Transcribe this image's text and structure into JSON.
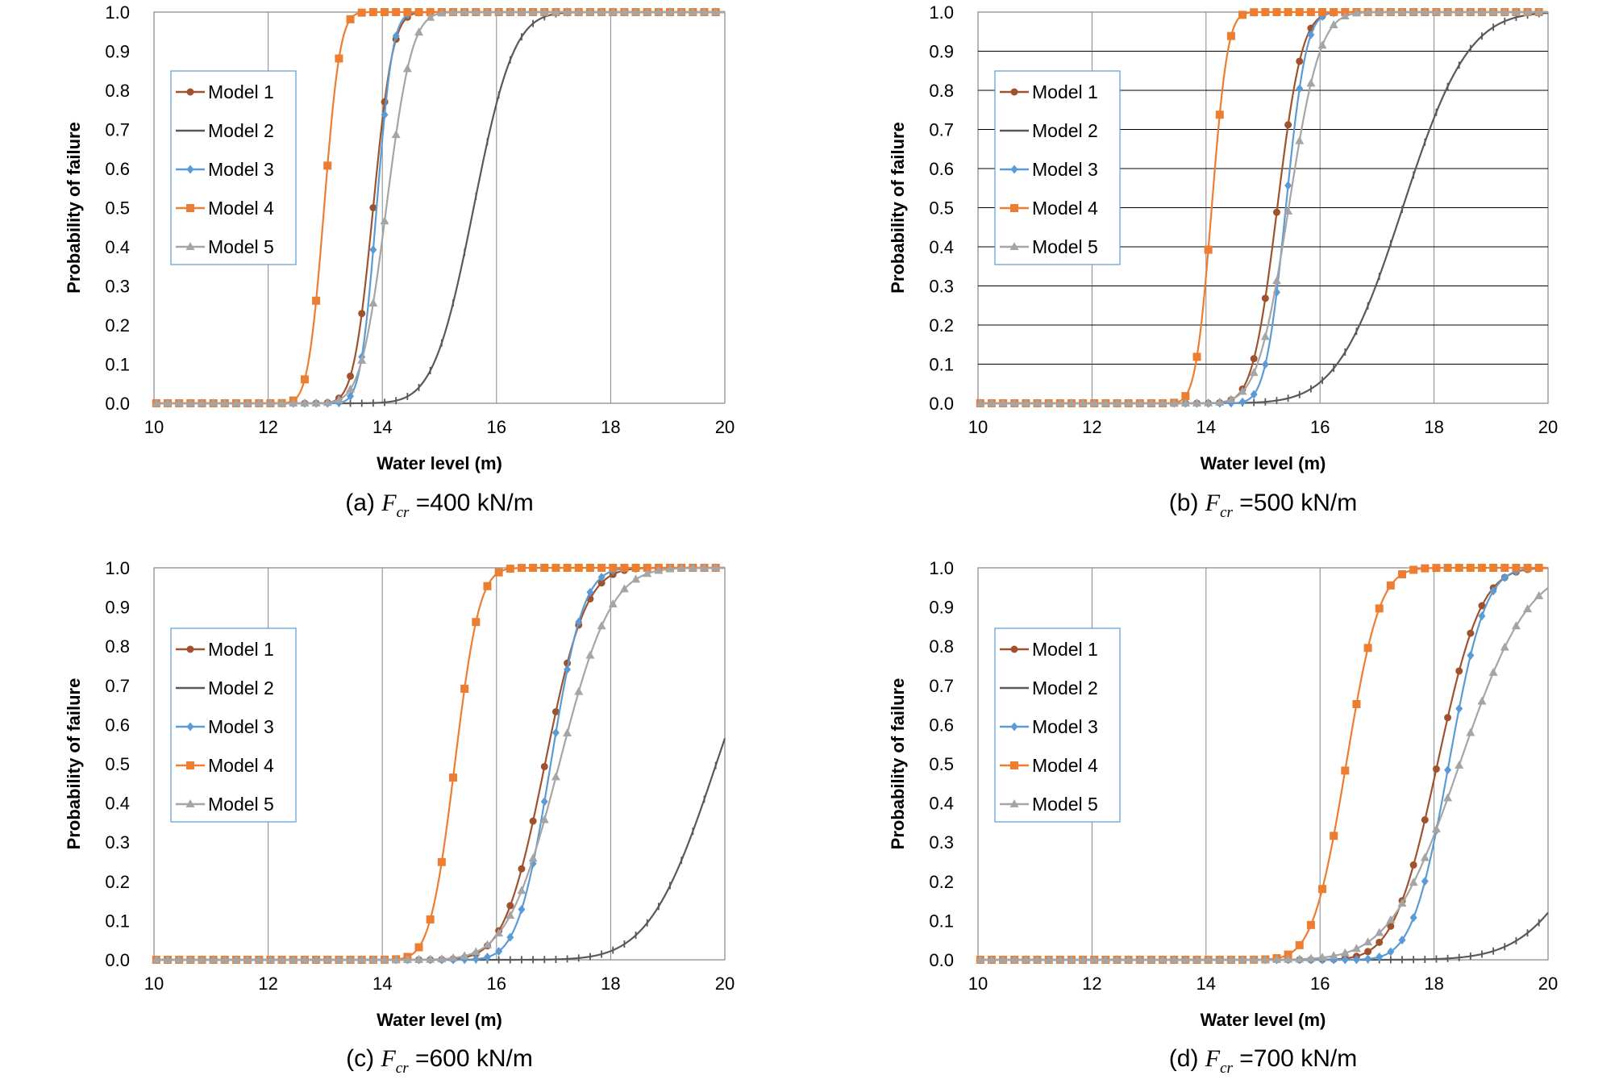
{
  "chart_data": [
    {
      "panel": "(a)",
      "caption": {
        "label": "(a)",
        "symbol": "F",
        "subscript": "cr",
        "value": "=400  kN/m"
      },
      "type": "line",
      "xlabel": "Water level (m)",
      "ylabel": "Probability  of failure",
      "xlim": [
        10,
        20
      ],
      "ylim": [
        0,
        1
      ],
      "xticks": [
        "10",
        "12",
        "14",
        "16",
        "18",
        "20"
      ],
      "yticks": [
        "0.0",
        "0.1",
        "0.2",
        "0.3",
        "0.4",
        "0.5",
        "0.6",
        "0.7",
        "0.8",
        "0.9",
        "1.0"
      ],
      "grid": "vertical",
      "legend_position": "left",
      "series": [
        {
          "name": "Model 1",
          "color": "#a0522d",
          "marker": "circle",
          "mu": 13.84,
          "sigma": 0.27
        },
        {
          "name": "Model 2",
          "color": "#595959",
          "marker": "dash",
          "mu": 15.6,
          "sigma": 0.55
        },
        {
          "name": "Model 3",
          "color": "#5b9bd5",
          "marker": "diamond",
          "mu": 13.9,
          "sigma": 0.22
        },
        {
          "name": "Model 4",
          "color": "#ed7d31",
          "marker": "square",
          "mu": 12.98,
          "sigma": 0.22
        },
        {
          "name": "Model 5",
          "color": "#a5a5a5",
          "marker": "triangle",
          "mu": 14.07,
          "sigma": 0.35
        }
      ]
    },
    {
      "panel": "(b)",
      "caption": {
        "label": "(b)",
        "symbol": "F",
        "subscript": "cr",
        "value": "=500  kN/m"
      },
      "type": "line",
      "xlabel": "Water level (m)",
      "ylabel": "Probability  of failure",
      "xlim": [
        10,
        20
      ],
      "ylim": [
        0,
        1
      ],
      "xticks": [
        "10",
        "12",
        "14",
        "16",
        "18",
        "20"
      ],
      "yticks": [
        "0.0",
        "0.1",
        "0.2",
        "0.3",
        "0.4",
        "0.5",
        "0.6",
        "0.7",
        "0.8",
        "0.9",
        "1.0"
      ],
      "grid": "both",
      "legend_position": "left",
      "series": [
        {
          "name": "Model 1",
          "color": "#a0522d",
          "marker": "circle",
          "mu": 15.25,
          "sigma": 0.34
        },
        {
          "name": "Model 2",
          "color": "#595959",
          "marker": "dash",
          "mu": 17.45,
          "sigma": 0.9
        },
        {
          "name": "Model 3",
          "color": "#5b9bd5",
          "marker": "diamond",
          "mu": 15.4,
          "sigma": 0.28
        },
        {
          "name": "Model 4",
          "color": "#ed7d31",
          "marker": "square",
          "mu": 14.1,
          "sigma": 0.22
        },
        {
          "name": "Model 5",
          "color": "#a5a5a5",
          "marker": "triangle",
          "mu": 15.45,
          "sigma": 0.43
        }
      ]
    },
    {
      "panel": "(c)",
      "caption": {
        "label": "(c)",
        "symbol": "F",
        "subscript": "cr",
        "value": "=600  kN/m"
      },
      "type": "line",
      "xlabel": "Water level (m)",
      "ylabel": "Probability  of failure",
      "xlim": [
        10,
        20
      ],
      "ylim": [
        0,
        1
      ],
      "xticks": [
        "10",
        "12",
        "14",
        "16",
        "18",
        "20"
      ],
      "yticks": [
        "0.0",
        "0.1",
        "0.2",
        "0.3",
        "0.4",
        "0.5",
        "0.6",
        "0.7",
        "0.8",
        "0.9",
        "1.0"
      ],
      "grid": "vertical",
      "legend_position": "left",
      "series": [
        {
          "name": "Model 1",
          "color": "#a0522d",
          "marker": "circle",
          "mu": 16.85,
          "sigma": 0.56
        },
        {
          "name": "Model 2",
          "color": "#595959",
          "marker": "dash",
          "mu": 19.85,
          "sigma": 0.92
        },
        {
          "name": "Model 3",
          "color": "#5b9bd5",
          "marker": "diamond",
          "mu": 16.95,
          "sigma": 0.45
        },
        {
          "name": "Model 4",
          "color": "#ed7d31",
          "marker": "square",
          "mu": 15.27,
          "sigma": 0.34
        },
        {
          "name": "Model 5",
          "color": "#a5a5a5",
          "marker": "triangle",
          "mu": 17.1,
          "sigma": 0.71
        }
      ]
    },
    {
      "panel": "(d)",
      "caption": {
        "label": "(d)",
        "symbol": "F",
        "subscript": "cr",
        "value": "=700  kN/m"
      },
      "type": "line",
      "xlabel": "Water level (m)",
      "ylabel": "Probability  of failure",
      "xlim": [
        10,
        20
      ],
      "ylim": [
        0,
        1
      ],
      "xticks": [
        "10",
        "12",
        "14",
        "16",
        "18",
        "20"
      ],
      "yticks": [
        "0.0",
        "0.1",
        "0.2",
        "0.3",
        "0.4",
        "0.5",
        "0.6",
        "0.7",
        "0.8",
        "0.9",
        "1.0"
      ],
      "grid": "vertical",
      "legend_position": "left",
      "series": [
        {
          "name": "Model 1",
          "color": "#a0522d",
          "marker": "circle",
          "mu": 18.06,
          "sigma": 0.6
        },
        {
          "name": "Model 2",
          "color": "#595959",
          "marker": "dash",
          "mu": 21.35,
          "sigma": 1.15
        },
        {
          "name": "Model 3",
          "color": "#5b9bd5",
          "marker": "diamond",
          "mu": 18.26,
          "sigma": 0.5
        },
        {
          "name": "Model 4",
          "color": "#ed7d31",
          "marker": "square",
          "mu": 16.46,
          "sigma": 0.46
        },
        {
          "name": "Model 5",
          "color": "#a5a5a5",
          "marker": "triangle",
          "mu": 18.45,
          "sigma": 0.95
        }
      ]
    }
  ]
}
